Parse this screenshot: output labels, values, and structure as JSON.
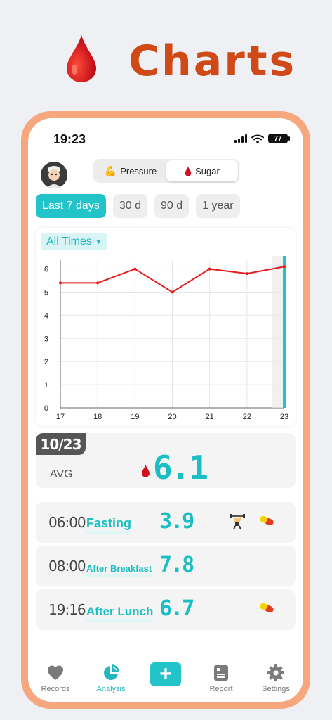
{
  "hero": {
    "title": "Charts",
    "icon": "blood-drop-icon"
  },
  "status_bar": {
    "time": "19:23",
    "battery": "77"
  },
  "header": {
    "segments": [
      {
        "label": "Pressure",
        "icon": "flexed-biceps-icon",
        "active": false
      },
      {
        "label": "Sugar",
        "icon": "blood-drop-icon",
        "active": true
      }
    ]
  },
  "ranges": [
    {
      "label": "Last 7 days",
      "active": true
    },
    {
      "label": "30 d",
      "active": false
    },
    {
      "label": "90 d",
      "active": false
    },
    {
      "label": "1 year",
      "active": false
    }
  ],
  "filter": {
    "label": "All Times"
  },
  "chart_data": {
    "type": "line",
    "x": [
      "17",
      "18",
      "19",
      "20",
      "21",
      "22",
      "23"
    ],
    "series": [
      {
        "values": [
          5.4,
          5.4,
          6.0,
          5.0,
          6.0,
          5.8,
          6.1
        ]
      }
    ],
    "yticks": [
      "0",
      "1",
      "2",
      "3",
      "4",
      "5",
      "6"
    ],
    "ylim": [
      0,
      6.2
    ],
    "grid": true,
    "line_color": "#e61b1b",
    "selected_x": "23",
    "selected_color": "#22c4c9"
  },
  "summary": {
    "date": "10/23",
    "label": "AVG",
    "value": "6.1"
  },
  "records": [
    {
      "time": "06:00",
      "type": "Fasting",
      "value": "3.9",
      "icons": [
        "weightlifter-icon",
        "pill-icon"
      ]
    },
    {
      "time": "08:00",
      "type": "After Breakfast",
      "value": "7.8",
      "icons": []
    },
    {
      "time": "19:16",
      "type": "After Lunch",
      "value": "6.7",
      "icons": [
        "pill-icon"
      ]
    }
  ],
  "tabbar": {
    "records": "Records",
    "analysis": "Analysis",
    "report": "Report",
    "settings": "Settings"
  },
  "colors": {
    "accent": "#22c4c9",
    "hero": "#d04a17",
    "frame": "#f7a77e"
  }
}
